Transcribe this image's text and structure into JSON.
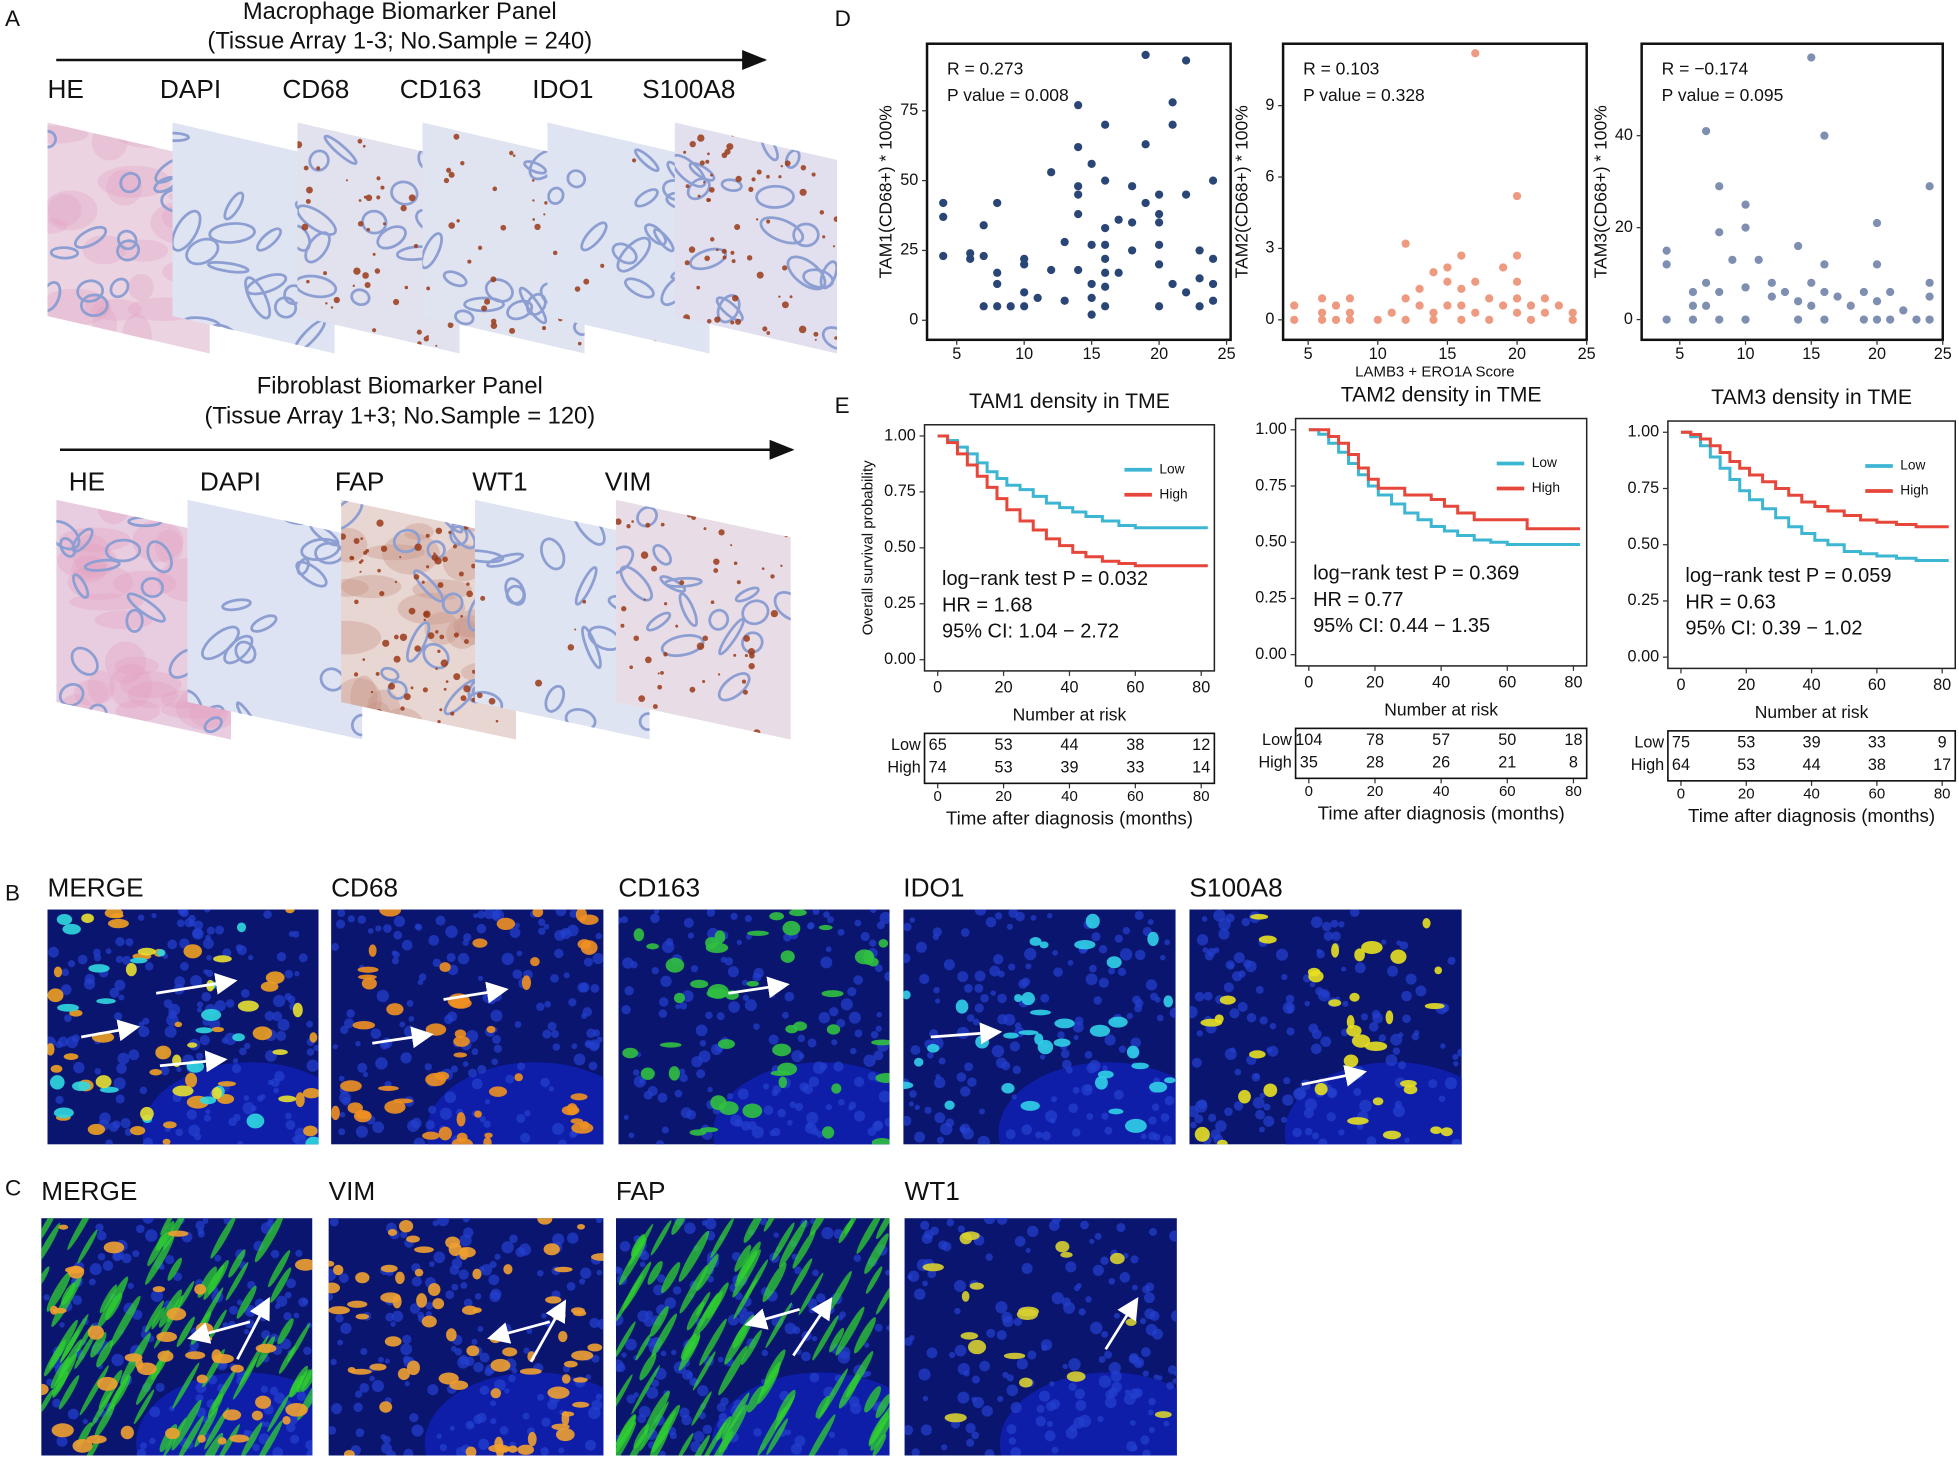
{
  "panel_labels": [
    "A",
    "B",
    "C",
    "D",
    "E"
  ],
  "panel_a": {
    "macrophage": {
      "title": "Macrophage Biomarker Panel",
      "subtitle": "(Tissue Array 1-3; No.Sample = 240)",
      "stains": [
        "HE",
        "DAPI",
        "CD68",
        "CD163",
        "IDO1",
        "S100A8"
      ]
    },
    "fibroblast": {
      "title": "Fibroblast Biomarker Panel",
      "subtitle": "(Tissue Array 1+3; No.Sample = 120)",
      "stains": [
        "HE",
        "DAPI",
        "FAP",
        "WT1",
        "VIM"
      ]
    }
  },
  "panel_b": {
    "stains": [
      "MERGE",
      "CD68",
      "CD163",
      "IDO1",
      "S100A8"
    ],
    "label_colors": [
      "#111111",
      "#f5a21e",
      "#2fe04a",
      "#2fd3ea",
      "#d8c82a"
    ]
  },
  "panel_c": {
    "stains": [
      "MERGE",
      "VIM",
      "FAP",
      "WT1"
    ],
    "label_colors": [
      "#111111",
      "#f6c75a",
      "#3ade3a",
      "#c8bd22"
    ]
  },
  "chart_data": [
    {
      "type": "scatter",
      "y_label": "TAM1(CD68+) * 100%",
      "annotations": [
        "R = 0.273",
        "P value = 0.008"
      ],
      "color": "#2a4676",
      "x": [
        4,
        4,
        4,
        6,
        6,
        7,
        7,
        7,
        8,
        8,
        8,
        8,
        9,
        10,
        10,
        10,
        10,
        11,
        12,
        12,
        13,
        13,
        14,
        14,
        14,
        14,
        14,
        14,
        15,
        15,
        15,
        15,
        15,
        16,
        16,
        16,
        16,
        16,
        16,
        16,
        16,
        17,
        17,
        18,
        18,
        18,
        19,
        19,
        19,
        20,
        20,
        20,
        20,
        20,
        20,
        21,
        21,
        21,
        22,
        22,
        22,
        23,
        23,
        23,
        24,
        24,
        24,
        24
      ],
      "y": [
        42,
        37,
        23,
        24,
        22,
        5,
        23,
        34,
        5,
        42,
        17,
        13,
        5,
        22,
        20,
        10,
        5,
        8,
        53,
        18,
        28,
        7,
        38,
        45,
        48,
        77,
        62,
        18,
        56,
        27,
        13,
        8,
        2,
        70,
        50,
        33,
        27,
        22,
        17,
        12,
        5,
        36,
        17,
        48,
        35,
        25,
        63,
        42,
        95,
        45,
        38,
        35,
        27,
        20,
        5,
        78,
        70,
        13,
        93,
        45,
        10,
        25,
        15,
        5,
        50,
        22,
        13,
        7
      ],
      "xlim": [
        2.8,
        25.3
      ],
      "ylim": [
        -7,
        99
      ],
      "xticks": [
        5,
        10,
        15,
        20,
        25
      ],
      "yticks": [
        0,
        25,
        50,
        75
      ]
    },
    {
      "type": "scatter",
      "y_label": "TAM2(CD68+) * 100%",
      "x_label": "LAMB3 + ERO1A Score",
      "annotations": [
        "R = 0.103",
        "P value = 0.328"
      ],
      "color": "#ee9a80",
      "x": [
        4,
        4,
        6,
        6,
        6,
        7,
        7,
        8,
        8,
        8,
        10,
        11,
        12,
        12,
        12,
        13,
        13,
        14,
        14,
        14,
        15,
        15,
        15,
        16,
        16,
        16,
        16,
        17,
        17,
        17,
        18,
        18,
        19,
        19,
        20,
        20,
        20,
        20,
        20,
        21,
        21,
        22,
        22,
        23,
        24,
        24
      ],
      "y": [
        0.6,
        0,
        0.3,
        0.9,
        0,
        0.6,
        0,
        0.3,
        0.9,
        0,
        0,
        0.3,
        0.9,
        3.2,
        0,
        1.3,
        0.6,
        2,
        0.3,
        0,
        1.6,
        0.6,
        2.2,
        2.7,
        1.3,
        0.6,
        0,
        11.2,
        1.6,
        0.3,
        0.9,
        0,
        0.6,
        2.2,
        5.2,
        2.7,
        1.6,
        0.9,
        0.3,
        0.6,
        0,
        0.3,
        0.9,
        0.6,
        0.3,
        0
      ],
      "xlim": [
        3.2,
        25
      ],
      "ylim": [
        -0.84,
        11.6
      ],
      "xticks": [
        5,
        10,
        15,
        20,
        25
      ],
      "yticks": [
        0,
        3,
        6,
        9
      ]
    },
    {
      "type": "scatter",
      "y_label": "TAM3(CD68+) * 100%",
      "annotations": [
        "R = −0.174",
        "P value = 0.095"
      ],
      "color": "#7f8fb2",
      "x": [
        4,
        4,
        4,
        6,
        6,
        6,
        7,
        7,
        7,
        8,
        8,
        8,
        8,
        9,
        10,
        10,
        10,
        10,
        11,
        12,
        12,
        13,
        14,
        14,
        14,
        15,
        15,
        15,
        16,
        16,
        16,
        16,
        17,
        18,
        19,
        19,
        20,
        20,
        20,
        20,
        21,
        21,
        22,
        23,
        24,
        24,
        24,
        24
      ],
      "y": [
        15,
        12,
        0,
        0,
        3,
        6,
        8,
        41,
        3,
        29,
        19,
        6,
        0,
        13,
        25,
        20,
        7,
        0,
        13,
        8,
        5,
        6,
        16,
        4,
        0,
        57,
        8,
        3,
        40,
        12,
        6,
        0,
        5,
        3,
        6,
        0,
        21,
        12,
        4,
        0,
        6,
        0,
        2,
        0,
        29,
        8,
        5,
        0
      ],
      "xlim": [
        2.1,
        25
      ],
      "ylim": [
        -4.4,
        60
      ],
      "xticks": [
        5,
        10,
        15,
        20,
        25
      ],
      "yticks": [
        0,
        20,
        40
      ]
    },
    {
      "type": "km",
      "title": "TAM1 density in TME",
      "y_label": "Overall survival probability",
      "x_label": "Time after diagnosis (months)",
      "risk_title": "Number at risk",
      "legend": "top-right",
      "annotations": [
        "log−rank test P = 0.032",
        "HR = 1.68",
        "95% CI: 1.04 − 2.72"
      ],
      "xlim": [
        -4,
        84
      ],
      "ylim": [
        -0.05,
        1.05
      ],
      "xticks": [
        0,
        20,
        40,
        60,
        80
      ],
      "yticks": [
        {
          "value": 1,
          "label": "1.00"
        },
        0.75,
        {
          "value": 0.5,
          "label": "0.50"
        },
        0.25,
        {
          "value": 0,
          "label": "0.00"
        }
      ],
      "series": [
        {
          "name": "Low",
          "color": "#3cb6d2",
          "x": [
            0,
            3,
            6,
            9,
            12,
            15,
            18,
            21,
            25,
            29,
            33,
            37,
            41,
            45,
            50,
            55,
            60,
            66,
            72,
            78,
            82
          ],
          "values": [
            1,
            0.98,
            0.95,
            0.92,
            0.88,
            0.84,
            0.81,
            0.78,
            0.76,
            0.73,
            0.7,
            0.68,
            0.66,
            0.64,
            0.62,
            0.6,
            0.59,
            0.59,
            0.59,
            0.59,
            0.59
          ],
          "at_risk": [
            65,
            53,
            44,
            38,
            12
          ]
        },
        {
          "name": "High",
          "color": "#e6473a",
          "x": [
            0,
            3,
            6,
            9,
            12,
            15,
            18,
            21,
            25,
            29,
            33,
            37,
            41,
            45,
            50,
            55,
            60,
            66,
            72,
            78,
            82
          ],
          "values": [
            1,
            0.97,
            0.92,
            0.87,
            0.82,
            0.77,
            0.72,
            0.67,
            0.62,
            0.58,
            0.54,
            0.51,
            0.48,
            0.46,
            0.44,
            0.43,
            0.42,
            0.42,
            0.42,
            0.42,
            0.42
          ],
          "at_risk": [
            74,
            53,
            39,
            33,
            14
          ]
        }
      ]
    },
    {
      "type": "km",
      "title": "TAM2 density in TME",
      "x_label": "Time after diagnosis (months)",
      "risk_title": "Number at risk",
      "legend": "top-right",
      "annotations": [
        "log−rank test P = 0.369",
        "HR = 0.77",
        "95% CI: 0.44 − 1.35"
      ],
      "xlim": [
        -4,
        84
      ],
      "ylim": [
        -0.05,
        1.05
      ],
      "xticks": [
        0,
        20,
        40,
        60,
        80
      ],
      "yticks": [
        {
          "value": 1,
          "label": "1.00"
        },
        0.75,
        {
          "value": 0.5,
          "label": "0.50"
        },
        0.25,
        {
          "value": 0,
          "label": "0.00"
        }
      ],
      "series": [
        {
          "name": "Low",
          "color": "#3cb6d2",
          "x": [
            0,
            3,
            6,
            9,
            12,
            15,
            18,
            21,
            25,
            29,
            33,
            37,
            41,
            45,
            50,
            55,
            60,
            66,
            72,
            78,
            82
          ],
          "values": [
            1,
            0.98,
            0.94,
            0.9,
            0.85,
            0.8,
            0.75,
            0.71,
            0.67,
            0.63,
            0.6,
            0.57,
            0.55,
            0.53,
            0.51,
            0.5,
            0.49,
            0.49,
            0.49,
            0.49,
            0.49
          ],
          "at_risk": [
            104,
            78,
            57,
            50,
            18
          ]
        },
        {
          "name": "High",
          "color": "#e6473a",
          "x": [
            0,
            3,
            6,
            9,
            12,
            15,
            18,
            21,
            25,
            29,
            33,
            37,
            41,
            45,
            50,
            55,
            60,
            66,
            72,
            78,
            82
          ],
          "values": [
            1,
            1,
            0.97,
            0.94,
            0.89,
            0.83,
            0.78,
            0.74,
            0.74,
            0.71,
            0.71,
            0.69,
            0.66,
            0.63,
            0.6,
            0.6,
            0.6,
            0.56,
            0.56,
            0.56,
            0.56
          ],
          "at_risk": [
            35,
            28,
            26,
            21,
            8
          ]
        }
      ]
    },
    {
      "type": "km",
      "title": "TAM3 density in TME",
      "x_label": "Time after diagnosis (months)",
      "risk_title": "Number at risk",
      "legend": "top-right",
      "annotations": [
        "log−rank test P = 0.059",
        "HR = 0.63",
        "95% CI: 0.39 − 1.02"
      ],
      "xlim": [
        -4,
        84
      ],
      "ylim": [
        -0.05,
        1.05
      ],
      "xticks": [
        0,
        20,
        40,
        60,
        80
      ],
      "yticks": [
        {
          "value": 1,
          "label": "1.00"
        },
        0.75,
        {
          "value": 0.5,
          "label": "0.50"
        },
        0.25,
        {
          "value": 0,
          "label": "0.00"
        }
      ],
      "series": [
        {
          "name": "Low",
          "color": "#3cb6d2",
          "x": [
            0,
            3,
            6,
            9,
            12,
            15,
            18,
            21,
            25,
            29,
            33,
            37,
            41,
            45,
            50,
            55,
            60,
            66,
            72,
            78,
            82
          ],
          "values": [
            1,
            0.98,
            0.94,
            0.89,
            0.84,
            0.79,
            0.74,
            0.7,
            0.66,
            0.62,
            0.58,
            0.55,
            0.52,
            0.5,
            0.47,
            0.46,
            0.45,
            0.44,
            0.43,
            0.43,
            0.43
          ],
          "at_risk": [
            75,
            53,
            39,
            33,
            9
          ]
        },
        {
          "name": "High",
          "color": "#e6473a",
          "x": [
            0,
            3,
            6,
            9,
            12,
            15,
            18,
            21,
            25,
            29,
            33,
            37,
            41,
            45,
            50,
            55,
            60,
            66,
            72,
            78,
            82
          ],
          "values": [
            1,
            0.99,
            0.97,
            0.94,
            0.91,
            0.87,
            0.84,
            0.81,
            0.78,
            0.75,
            0.72,
            0.69,
            0.67,
            0.65,
            0.63,
            0.61,
            0.6,
            0.59,
            0.58,
            0.58,
            0.58
          ],
          "at_risk": [
            64,
            53,
            44,
            38,
            17
          ]
        }
      ]
    }
  ]
}
